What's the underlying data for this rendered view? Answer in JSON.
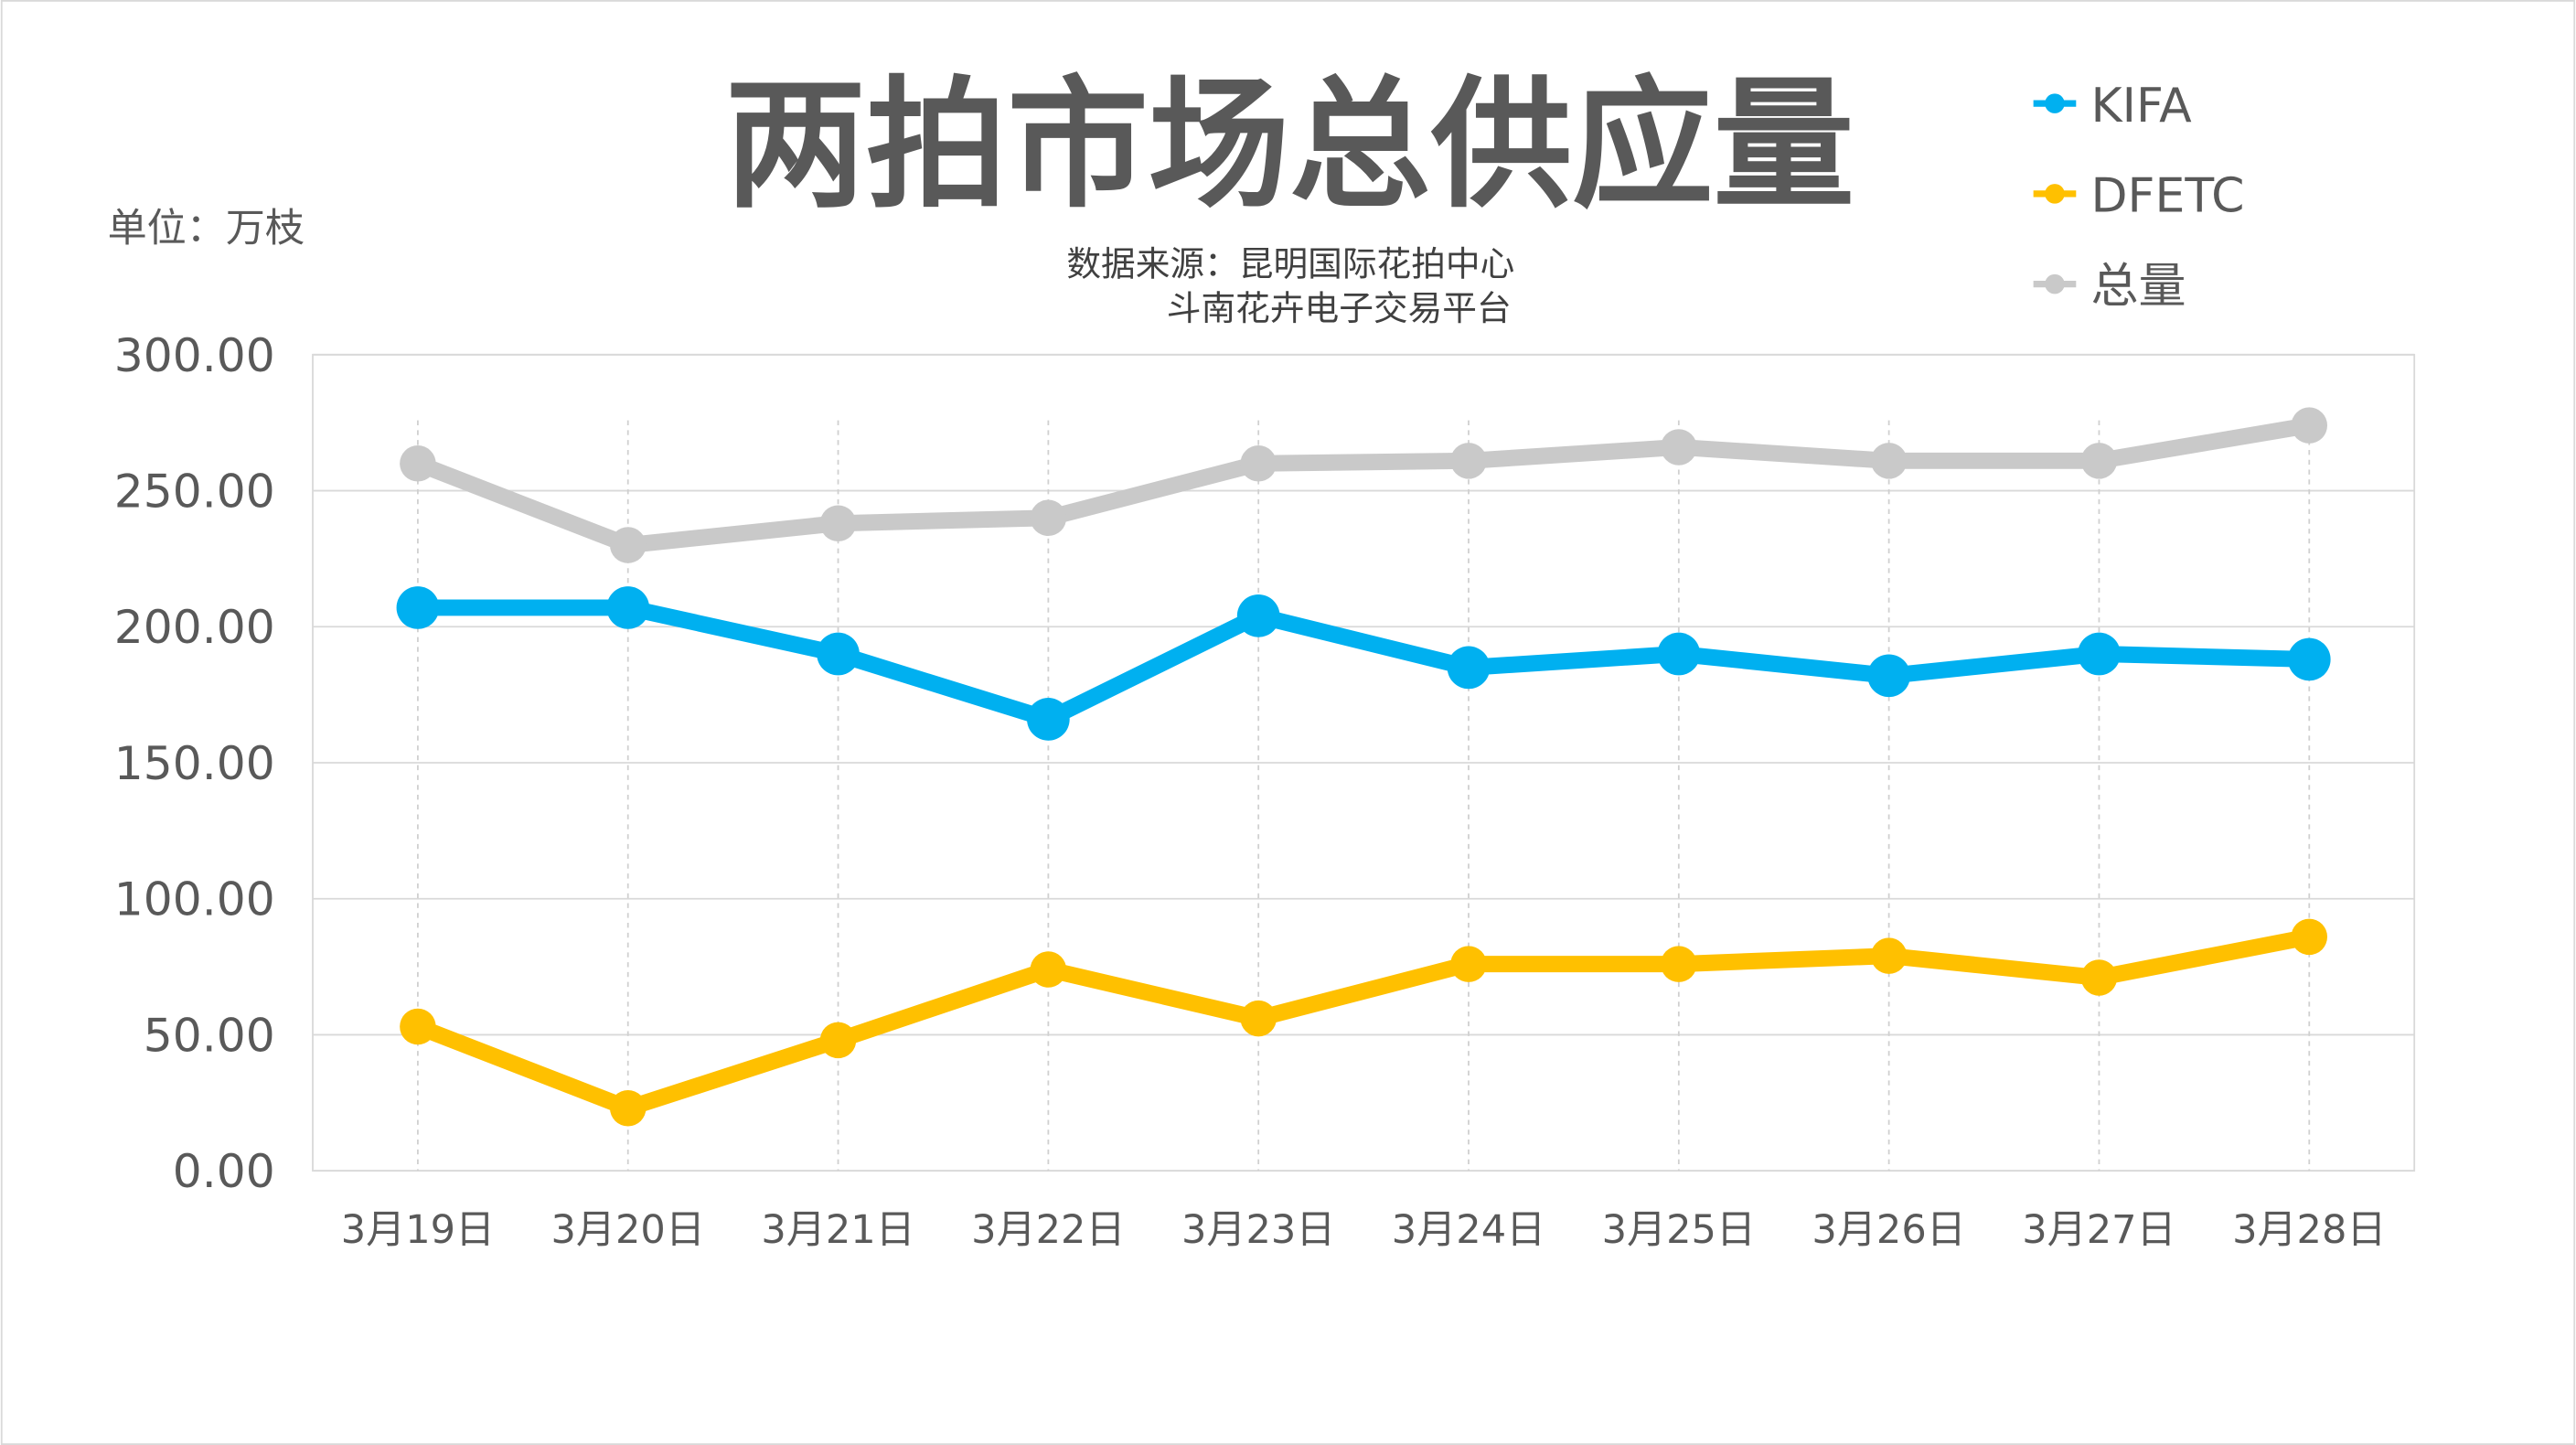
{
  "chart_data": {
    "type": "line",
    "title": "两拍市场总供应量",
    "unit_label": "单位：万枝",
    "source_line1": "数据来源：昆明国际花拍中心",
    "source_line2": "斗南花卉电子交易平台",
    "categories": [
      "3月19日",
      "3月20日",
      "3月21日",
      "3月22日",
      "3月23日",
      "3月24日",
      "3月25日",
      "3月26日",
      "3月27日",
      "3月28日"
    ],
    "ylim": [
      0,
      300
    ],
    "yticks": [
      "0.00",
      "50.00",
      "100.00",
      "150.00",
      "200.00",
      "250.00",
      "300.00"
    ],
    "grid": true,
    "legend_position": "top-right",
    "series": [
      {
        "name": "KIFA",
        "color": "#00B0F0",
        "values": [
          207,
          207,
          190,
          166,
          204,
          185,
          190,
          182,
          190,
          188
        ]
      },
      {
        "name": "DFETC",
        "color": "#FFC000",
        "values": [
          53,
          23,
          48,
          74,
          56,
          76,
          76,
          79,
          71,
          86
        ]
      },
      {
        "name": "总量",
        "color": "#C9C9C9",
        "values": [
          260,
          230,
          238,
          240,
          260,
          261,
          266,
          261,
          261,
          274
        ]
      }
    ]
  }
}
